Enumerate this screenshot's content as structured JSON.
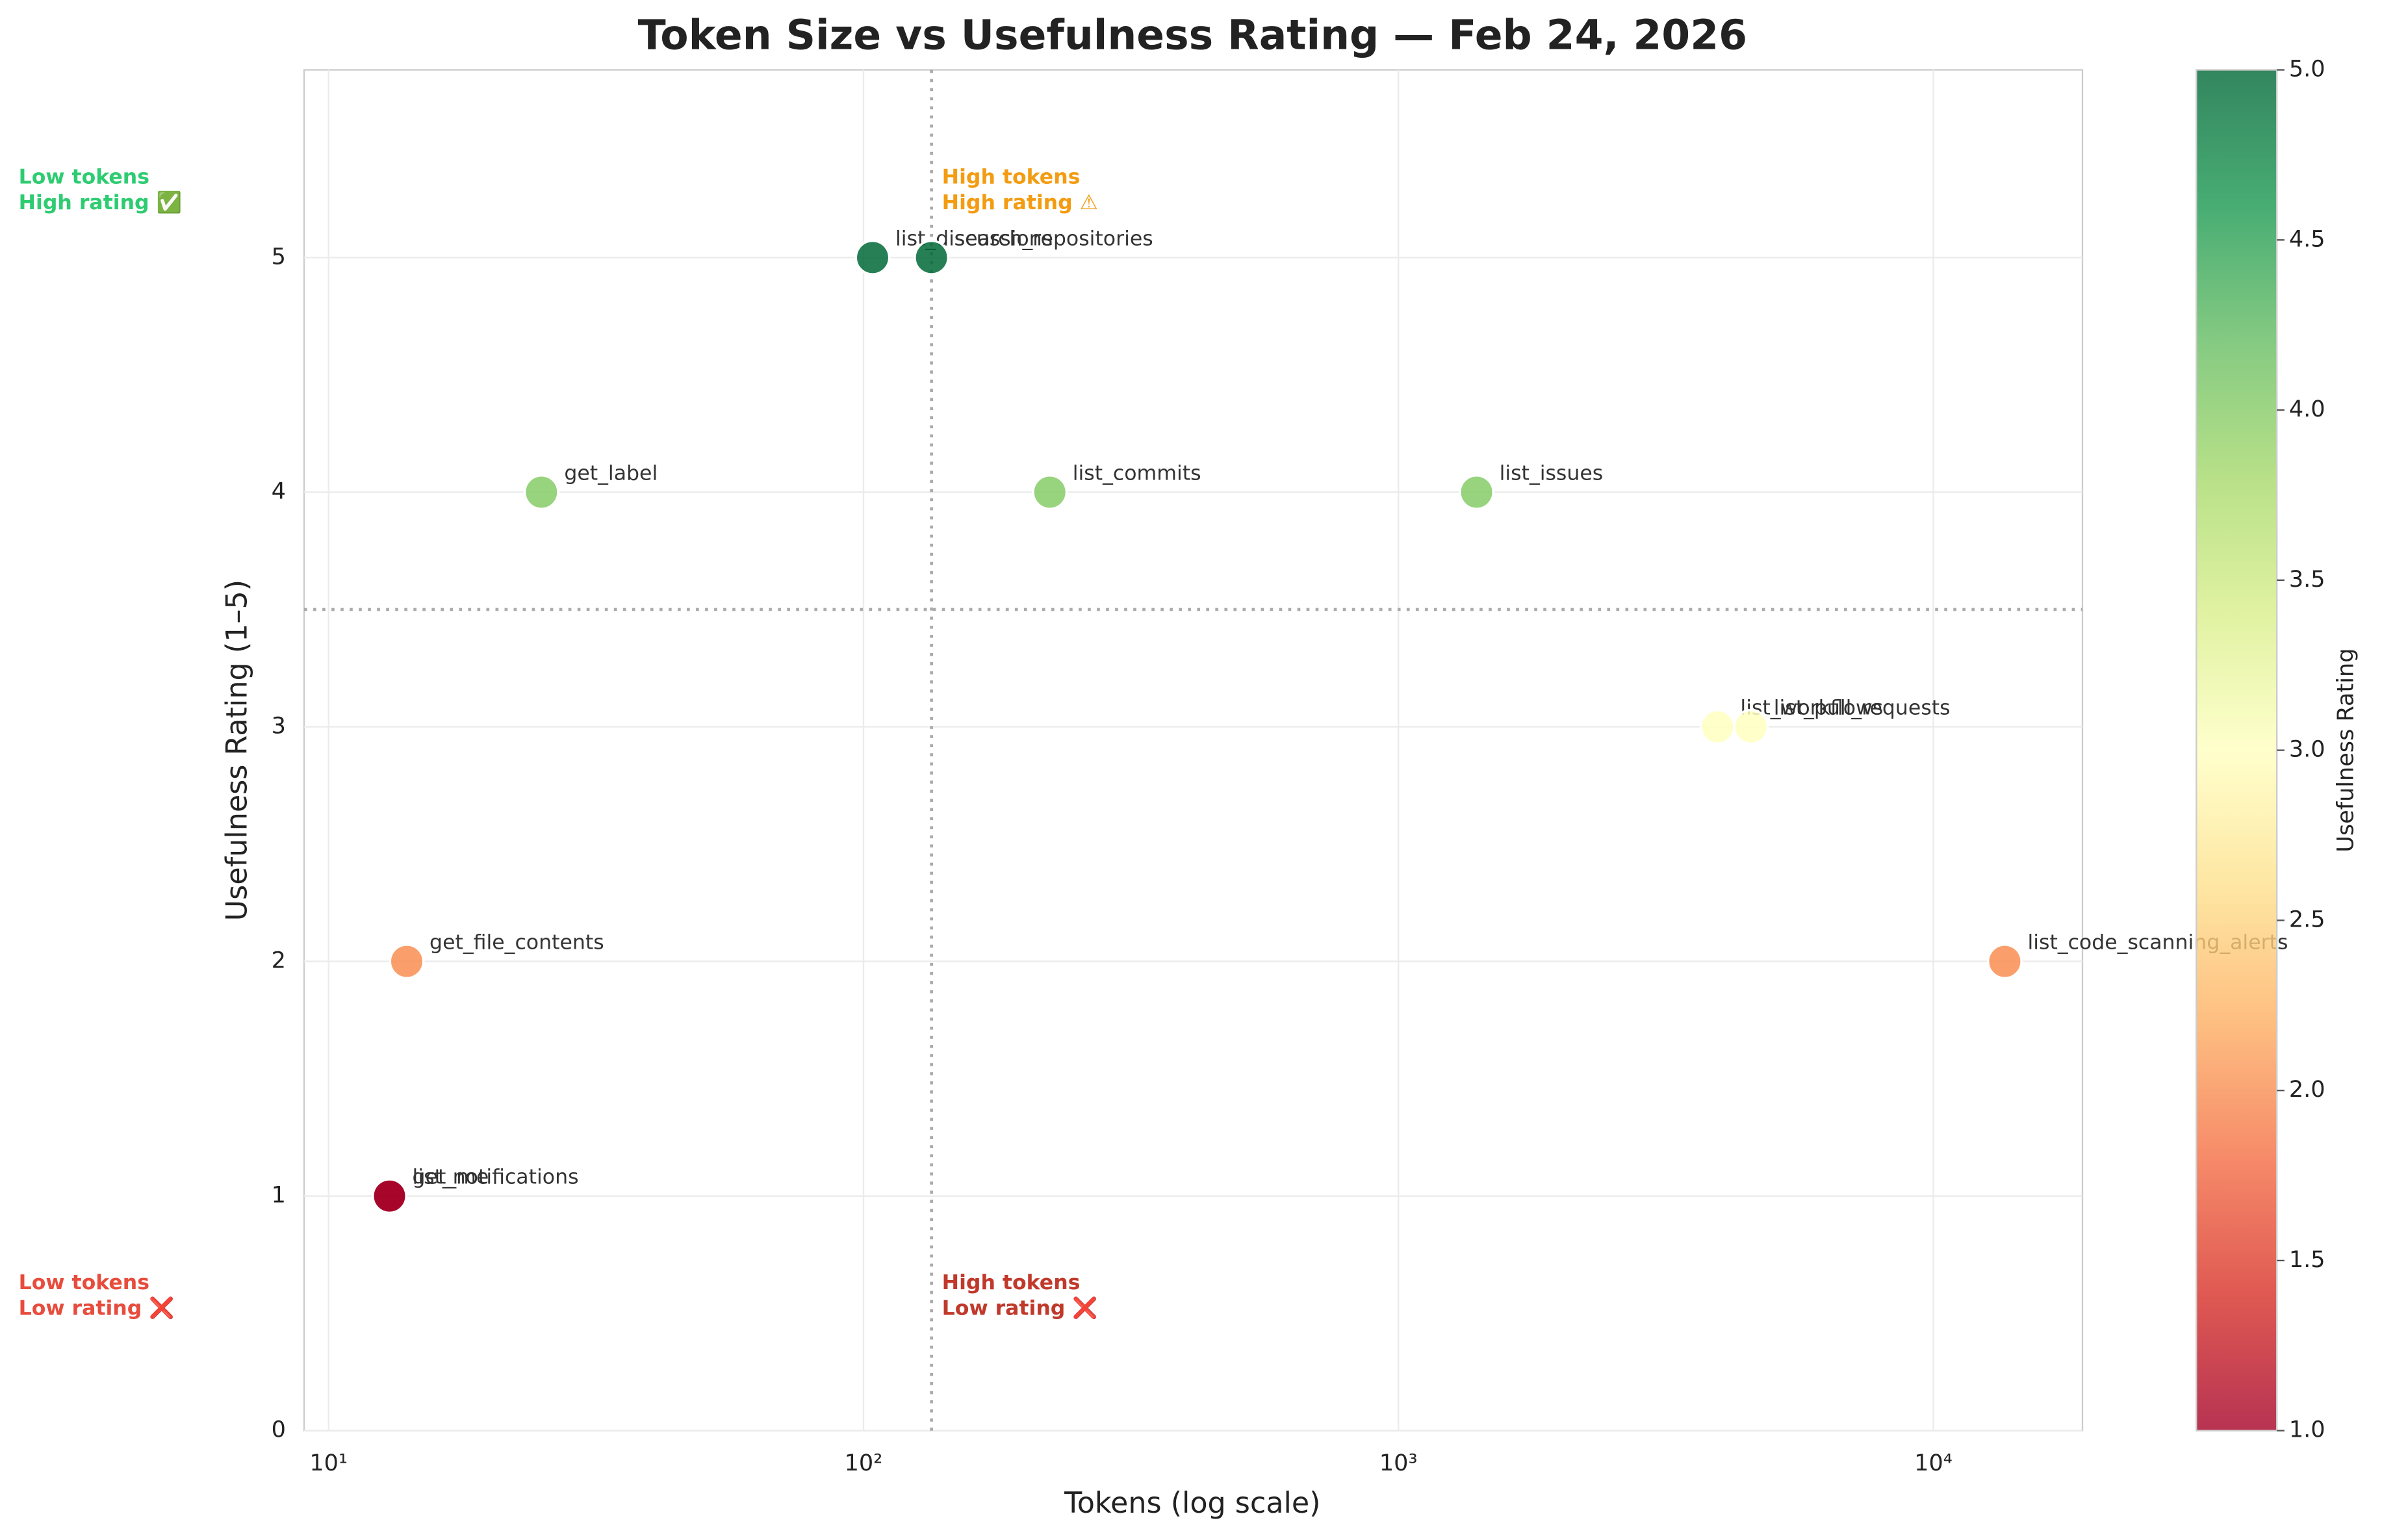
{
  "chart_data": {
    "type": "scatter",
    "title": "Token Size vs Usefulness Rating — Feb 24, 2026",
    "x_label": "Tokens (log scale)",
    "y_label": "Usefulness Rating (1–5)",
    "point_labels": [
      "list_discussions",
      "search_repositories",
      "get_label",
      "list_commits",
      "list_issues",
      "list_workflows",
      "list_pull_requests",
      "get_file_contents",
      "list_code_scanning_alerts",
      "get_me",
      "list_notifications"
    ],
    "x": [
      104,
      134,
      25,
      223,
      1400,
      3950,
      4560,
      14,
      13600,
      13,
      13
    ],
    "values": [
      5,
      5,
      4,
      4,
      4,
      3,
      3,
      2,
      2,
      1,
      1
    ],
    "log_x": true,
    "xlim": [
      9,
      19000
    ],
    "ylim": [
      0,
      5.8
    ],
    "xticks": [
      {
        "value": 10,
        "label": "10¹"
      },
      {
        "value": 100,
        "label": "10²"
      },
      {
        "value": 1000,
        "label": "10³"
      },
      {
        "value": 10000,
        "label": "10⁴"
      }
    ],
    "yticks": [
      0,
      1,
      2,
      3,
      4,
      5
    ],
    "grid": true,
    "reference_lines": {
      "x": 134,
      "y": 3.5
    },
    "annotations": [
      {
        "lines": [
          "Low tokens",
          "High rating ✅"
        ],
        "color": "#2ecc71"
      },
      {
        "lines": [
          "High tokens",
          "High rating ⚠"
        ],
        "color": "#f39c12"
      },
      {
        "lines": [
          "Low tokens",
          "Low rating ❌"
        ],
        "color": "#e74c3c"
      },
      {
        "lines": [
          "High tokens",
          "Low rating ❌"
        ],
        "color": "#c0392b"
      }
    ],
    "colorbar": {
      "label": "Usefulness Rating",
      "clim": [
        1,
        5
      ],
      "colors": [
        "#a50026",
        "#d73027",
        "#f46d43",
        "#fdae61",
        "#fee08b",
        "#ffffbf",
        "#d9ef8b",
        "#a6d96a",
        "#66bd63",
        "#1a9850",
        "#006837"
      ],
      "ticks": [
        {
          "value": 1,
          "label": "1.0"
        },
        {
          "value": 1.5,
          "label": "1.5"
        },
        {
          "value": 2,
          "label": "2.0"
        },
        {
          "value": 2.5,
          "label": "2.5"
        },
        {
          "value": 3,
          "label": "3.0"
        },
        {
          "value": 3.5,
          "label": "3.5"
        },
        {
          "value": 4,
          "label": "4.0"
        },
        {
          "value": 4.5,
          "label": "4.5"
        },
        {
          "value": 5,
          "label": "5.0"
        }
      ]
    }
  }
}
